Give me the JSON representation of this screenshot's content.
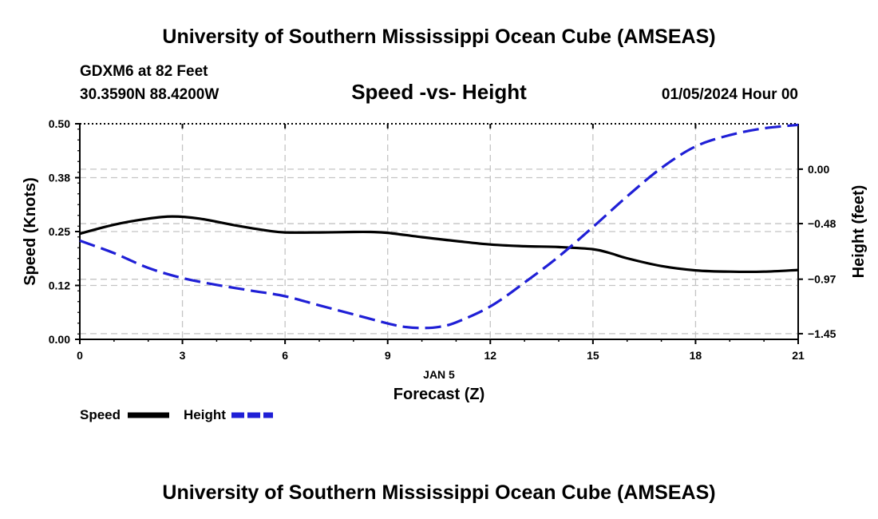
{
  "header": {
    "title_top": "University of Southern Mississippi Ocean Cube (AMSEAS)",
    "title_bottom": "University of Southern Mississippi Ocean Cube (AMSEAS)",
    "station": "GDXM6 at 82 Feet",
    "coordinates": "30.3590N  88.4200W",
    "datetime": "01/05/2024 Hour 00"
  },
  "chart_data": {
    "type": "line",
    "title": "Speed -vs- Height",
    "xlabel": "Forecast (Z)",
    "xdate": "JAN 5",
    "ylabel": "Speed (Knots)",
    "y2label": "Height (feet)",
    "x_ticks": [
      0,
      3,
      6,
      9,
      12,
      15,
      18,
      21
    ],
    "x_tick_labels": [
      "0",
      "3",
      "6",
      "9",
      "12",
      "15",
      "18",
      "21"
    ],
    "xlim": [
      0,
      21
    ],
    "y_ticks": [
      0.0,
      0.125,
      0.25,
      0.375,
      0.5
    ],
    "y_tick_labels": [
      "0.00",
      "0.12",
      "0.25",
      "0.38",
      "0.50"
    ],
    "ylim": [
      0,
      0.5
    ],
    "y2_ticks": [
      -1.45,
      -0.97,
      -0.48,
      0.0
    ],
    "y2_tick_labels": [
      "−1.45",
      "−0.97",
      "−0.48",
      "0.00"
    ],
    "y2lim": [
      -1.5,
      0.4
    ],
    "series": [
      {
        "name": "Speed",
        "axis": "left",
        "color": "#000000",
        "dash": "solid",
        "x": [
          0,
          1,
          2,
          2.7,
          3.5,
          4.5,
          5.5,
          6,
          7,
          8,
          8.5,
          9,
          10,
          11,
          12,
          13,
          14,
          15,
          15.5,
          16,
          17,
          18,
          19,
          20,
          21
        ],
        "values": [
          0.245,
          0.266,
          0.28,
          0.285,
          0.28,
          0.265,
          0.252,
          0.248,
          0.248,
          0.249,
          0.249,
          0.247,
          0.237,
          0.228,
          0.22,
          0.216,
          0.214,
          0.209,
          0.2,
          0.188,
          0.17,
          0.16,
          0.157,
          0.157,
          0.161
        ]
      },
      {
        "name": "Height",
        "axis": "right",
        "color": "#1f1fd6",
        "dash": "dashed",
        "x": [
          0,
          1,
          2,
          3,
          4,
          5,
          6,
          7,
          8,
          9,
          9.5,
          10,
          10.5,
          11,
          12,
          13,
          14,
          15,
          16,
          17,
          18,
          19,
          20,
          21
        ],
        "values": [
          -0.63,
          -0.74,
          -0.87,
          -0.96,
          -1.02,
          -1.07,
          -1.12,
          -1.2,
          -1.28,
          -1.36,
          -1.39,
          -1.4,
          -1.39,
          -1.35,
          -1.21,
          -1.0,
          -0.77,
          -0.51,
          -0.24,
          0.01,
          0.2,
          0.3,
          0.36,
          0.39
        ]
      }
    ],
    "legend": {
      "position": "bottom-left",
      "items": [
        {
          "label": "Speed",
          "color": "#000000"
        },
        {
          "label": "Height",
          "color": "#1f1fd6"
        }
      ]
    },
    "grid": true
  }
}
